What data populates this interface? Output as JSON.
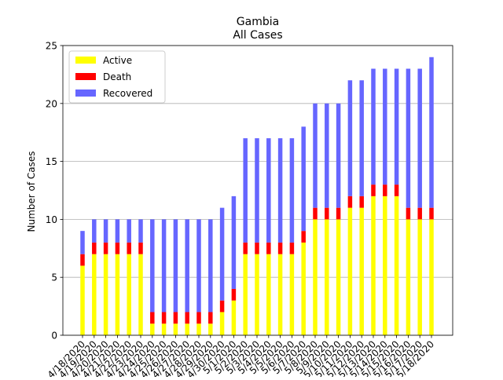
{
  "chart_data": {
    "type": "bar",
    "stacked": true,
    "title": "Gambia",
    "subtitle": "All Cases",
    "xlabel": "",
    "ylabel": "Number of Cases",
    "ylim": [
      0,
      25
    ],
    "yticks": [
      0,
      5,
      10,
      15,
      20,
      25
    ],
    "grid": "horizontal",
    "legend_position": "top-left",
    "categories": [
      "4/18/2020",
      "4/19/2020",
      "4/20/2020",
      "4/21/2020",
      "4/22/2020",
      "4/23/2020",
      "4/24/2020",
      "4/25/2020",
      "4/26/2020",
      "4/27/2020",
      "4/28/2020",
      "4/29/2020",
      "4/30/2020",
      "5/1/2020",
      "5/2/2020",
      "5/3/2020",
      "5/4/2020",
      "5/5/2020",
      "5/6/2020",
      "5/7/2020",
      "5/8/2020",
      "5/9/2020",
      "5/10/2020",
      "5/11/2020",
      "5/12/2020",
      "5/13/2020",
      "5/14/2020",
      "5/15/2020",
      "5/16/2020",
      "5/17/2020",
      "5/18/2020"
    ],
    "series": [
      {
        "name": "Active",
        "color": "#ffff00",
        "values": [
          6,
          7,
          7,
          7,
          7,
          7,
          1,
          1,
          1,
          1,
          1,
          1,
          2,
          3,
          7,
          7,
          7,
          7,
          7,
          8,
          10,
          10,
          10,
          11,
          11,
          12,
          12,
          12,
          10,
          10,
          10
        ]
      },
      {
        "name": "Death",
        "color": "#ff0000",
        "values": [
          1,
          1,
          1,
          1,
          1,
          1,
          1,
          1,
          1,
          1,
          1,
          1,
          1,
          1,
          1,
          1,
          1,
          1,
          1,
          1,
          1,
          1,
          1,
          1,
          1,
          1,
          1,
          1,
          1,
          1,
          1
        ]
      },
      {
        "name": "Recovered",
        "color": "#6666ff",
        "values": [
          2,
          2,
          2,
          2,
          2,
          2,
          8,
          8,
          8,
          8,
          8,
          8,
          8,
          8,
          9,
          9,
          9,
          9,
          9,
          9,
          9,
          9,
          9,
          10,
          10,
          10,
          10,
          10,
          12,
          12,
          13
        ]
      }
    ]
  }
}
